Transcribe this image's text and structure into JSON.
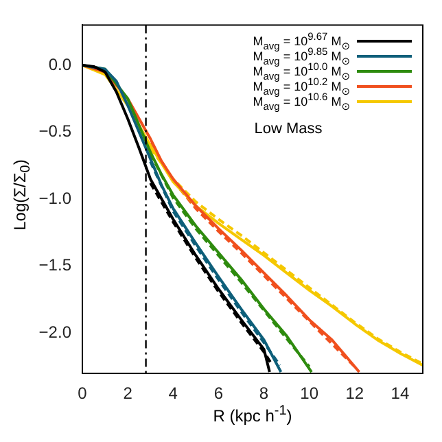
{
  "chart_data": {
    "type": "line",
    "xlabel": "R (kpc h$^{-1}$)",
    "ylabel": "Log(Σ/Σ$_{0}$)",
    "xlim": [
      0,
      15
    ],
    "xticks": [
      0,
      2,
      4,
      6,
      8,
      10,
      12,
      14
    ],
    "ylim": [
      -2.3,
      0.3
    ],
    "yticks": [
      {
        "value": -2,
        "label": "−2.0"
      },
      {
        "value": -1.5,
        "label": "−1.5"
      },
      {
        "value": -1,
        "label": "−1.0"
      },
      {
        "value": -0.5,
        "label": "−0.5"
      },
      {
        "value": 0,
        "label": "0.0"
      }
    ],
    "grid": false,
    "legend": "top right",
    "marker": "none",
    "line_style": "solid",
    "annotations": [
      "Low Mass"
    ],
    "ref_lines": [
      {
        "axis": "x",
        "value": 2.8,
        "label": null,
        "color": "#000000",
        "line_style": "dashdot"
      }
    ],
    "series": [
      {
        "name": "M$_{avg}$ = 10$^{9.67}$ M$_{⊙}$",
        "color": "#000000",
        "x": [
          0,
          0.5,
          1,
          1.5,
          2,
          2.5,
          3,
          3.5,
          4,
          5,
          6,
          7,
          8,
          8.25
        ],
        "values": [
          0,
          -0.01,
          -0.05,
          -0.2,
          -0.4,
          -0.62,
          -0.85,
          -1.0,
          -1.15,
          -1.42,
          -1.67,
          -1.9,
          -2.12,
          -2.29
        ]
      },
      {
        "name": "M$_{avg}$ = 10$^{9.85}$ M$_{⊙}$",
        "color": "#0e5f7a",
        "x": [
          0,
          1,
          1.5,
          2,
          2.5,
          3,
          3.5,
          4,
          5,
          6,
          7,
          8,
          8.75
        ],
        "values": [
          0,
          -0.03,
          -0.12,
          -0.3,
          -0.5,
          -0.7,
          -0.9,
          -1.07,
          -1.33,
          -1.58,
          -1.82,
          -2.05,
          -2.29
        ]
      },
      {
        "name": "M$_{avg}$ = 10$^{10.0}$ M$_{⊙}$",
        "color": "#2e8b0e",
        "x": [
          0,
          1,
          2,
          2.5,
          3,
          3.5,
          4,
          5,
          6,
          7,
          8,
          9,
          10.1
        ],
        "values": [
          0,
          -0.03,
          -0.25,
          -0.45,
          -0.65,
          -0.82,
          -0.97,
          -1.2,
          -1.4,
          -1.6,
          -1.82,
          -2.02,
          -2.29
        ]
      },
      {
        "name": "M$_{avg}$ = 10$^{10.2}$ M$_{⊙}$",
        "color": "#f0501e",
        "x": [
          0,
          1,
          2,
          3,
          3.5,
          4,
          5,
          6,
          7,
          8,
          9,
          10,
          11,
          12.2
        ],
        "values": [
          0,
          -0.05,
          -0.25,
          -0.55,
          -0.72,
          -0.85,
          -1.05,
          -1.22,
          -1.38,
          -1.55,
          -1.72,
          -1.9,
          -2.05,
          -2.29
        ]
      },
      {
        "name": "M$_{avg}$ = 10$^{10.6}$ M$_{⊙}$",
        "color": "#f5c800",
        "x": [
          0,
          1,
          2,
          3,
          4,
          5,
          6,
          7,
          8,
          9,
          10,
          11,
          12,
          13,
          14,
          15
        ],
        "values": [
          0,
          -0.07,
          -0.3,
          -0.6,
          -0.87,
          -1.05,
          -1.18,
          -1.3,
          -1.42,
          -1.55,
          -1.68,
          -1.8,
          -1.93,
          -2.05,
          -2.15,
          -2.24
        ]
      },
      {
        "color": "#000000",
        "line_style": "dashed",
        "x": [
          3,
          4,
          5,
          6,
          7,
          8,
          8.3
        ],
        "values": [
          -0.88,
          -1.17,
          -1.44,
          -1.69,
          -1.92,
          -2.14,
          -2.22
        ]
      },
      {
        "color": "#0e5f7a",
        "line_style": "dashed",
        "x": [
          3,
          4,
          5,
          6,
          7,
          8,
          8.7
        ],
        "values": [
          -0.72,
          -1.09,
          -1.35,
          -1.6,
          -1.84,
          -2.07,
          -2.24
        ]
      },
      {
        "color": "#2e8b0e",
        "line_style": "dashed",
        "x": [
          3,
          4,
          5,
          6,
          7,
          8,
          9,
          10
        ],
        "values": [
          -0.66,
          -0.99,
          -1.22,
          -1.42,
          -1.62,
          -1.83,
          -2.04,
          -2.25
        ]
      },
      {
        "color": "#f0501e",
        "line_style": "dashed",
        "x": [
          3,
          4,
          5,
          6,
          7,
          8,
          9,
          10,
          11,
          12
        ],
        "values": [
          -0.58,
          -0.86,
          -1.07,
          -1.24,
          -1.4,
          -1.57,
          -1.74,
          -1.91,
          -2.08,
          -2.25
        ]
      },
      {
        "color": "#f5c800",
        "line_style": "dashed",
        "x": [
          3,
          4,
          5,
          6,
          7,
          8,
          9,
          10,
          11,
          12,
          13,
          14,
          15
        ],
        "values": [
          -0.62,
          -0.85,
          -1.02,
          -1.15,
          -1.27,
          -1.4,
          -1.53,
          -1.66,
          -1.79,
          -1.92,
          -2.04,
          -2.14,
          -2.23
        ]
      }
    ]
  }
}
